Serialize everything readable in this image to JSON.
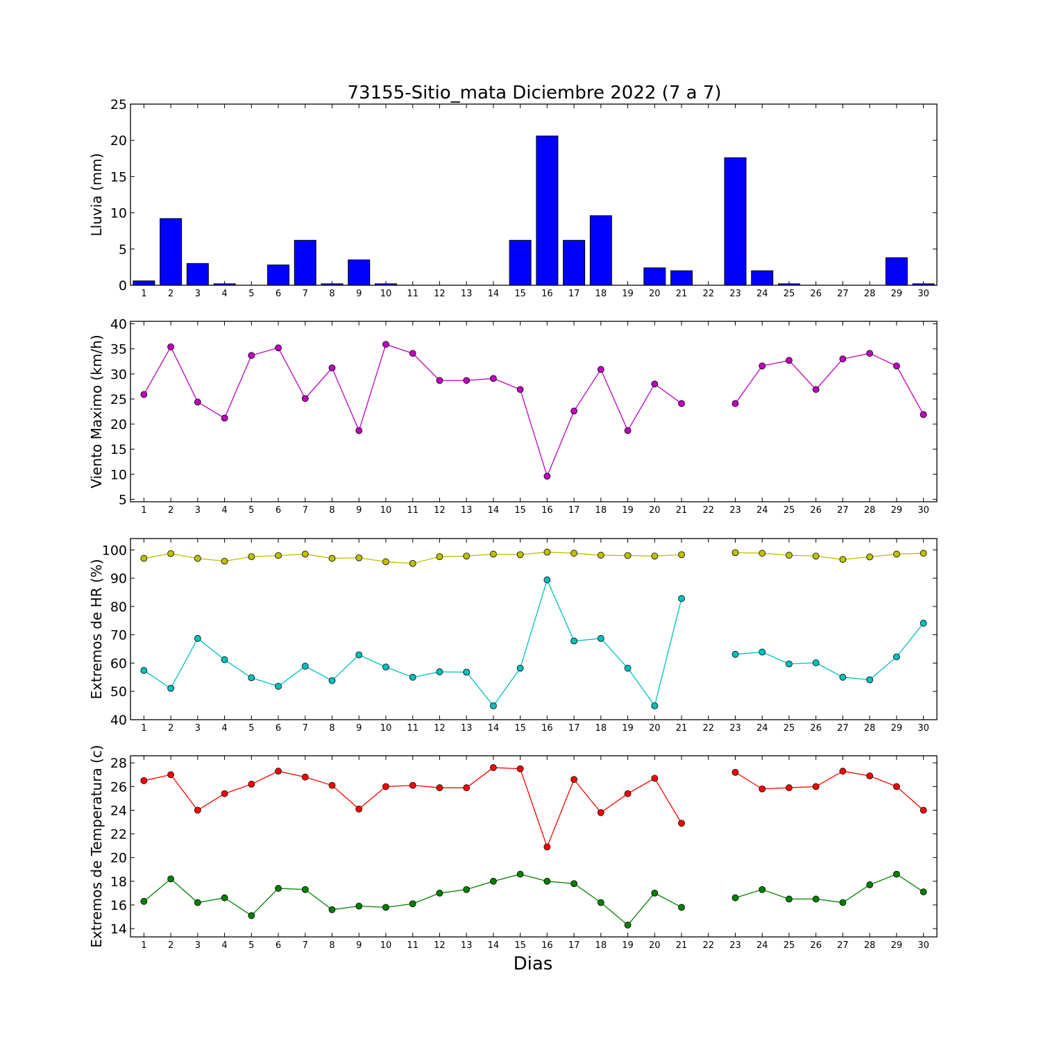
{
  "figure": {
    "title": "73155-Sitio_mata Diciembre 2022  (7 a 7)",
    "xlabel": "Dias"
  },
  "chart_data": [
    {
      "type": "bar",
      "ylabel": "Lluvia (mm)",
      "ylim": [
        0,
        25
      ],
      "yticks": [
        0,
        5,
        10,
        15,
        20,
        25
      ],
      "categories": [
        "1",
        "2",
        "3",
        "4",
        "5",
        "6",
        "7",
        "8",
        "9",
        "10",
        "11",
        "12",
        "13",
        "14",
        "15",
        "16",
        "17",
        "18",
        "19",
        "20",
        "21",
        "22",
        "23",
        "24",
        "25",
        "26",
        "27",
        "28",
        "29",
        "30"
      ],
      "series": [
        {
          "color": "#0000ff",
          "values": [
            0.6,
            9.2,
            3.0,
            0.2,
            null,
            2.8,
            6.2,
            0.2,
            3.5,
            0.2,
            0.0,
            0.0,
            0.0,
            0.0,
            6.2,
            20.6,
            6.2,
            9.6,
            0.0,
            2.4,
            2.0,
            null,
            17.6,
            2.0,
            0.2,
            0.0,
            0.0,
            0.0,
            3.8,
            0.2
          ]
        }
      ]
    },
    {
      "type": "line",
      "ylabel": "Viento Maximo (km/h)",
      "ylim": [
        4.5,
        40.5
      ],
      "yticks": [
        5,
        10,
        15,
        20,
        25,
        30,
        35,
        40
      ],
      "categories": [
        "1",
        "2",
        "3",
        "4",
        "5",
        "6",
        "7",
        "8",
        "9",
        "10",
        "11",
        "12",
        "13",
        "14",
        "15",
        "16",
        "17",
        "18",
        "19",
        "20",
        "21",
        "22",
        "23",
        "24",
        "25",
        "26",
        "27",
        "28",
        "29",
        "30"
      ],
      "series": [
        {
          "color": "#bf00bf",
          "values": [
            25.9,
            35.4,
            24.4,
            21.2,
            33.7,
            35.2,
            25.1,
            31.2,
            18.7,
            35.9,
            34.1,
            28.7,
            28.7,
            29.1,
            26.9,
            9.6,
            22.6,
            30.9,
            18.7,
            28.0,
            24.1,
            null,
            24.1,
            31.6,
            32.7,
            26.9,
            33.0,
            34.1,
            31.6,
            21.9
          ]
        }
      ]
    },
    {
      "type": "line",
      "ylabel": "Extremos de HR (%)",
      "ylim": [
        40,
        104
      ],
      "yticks": [
        40,
        50,
        60,
        70,
        80,
        90,
        100
      ],
      "categories": [
        "1",
        "2",
        "3",
        "4",
        "5",
        "6",
        "7",
        "8",
        "9",
        "10",
        "11",
        "12",
        "13",
        "14",
        "15",
        "16",
        "17",
        "18",
        "19",
        "20",
        "21",
        "22",
        "23",
        "24",
        "25",
        "26",
        "27",
        "28",
        "29",
        "30"
      ],
      "series": [
        {
          "color": "#bfbf00",
          "values": [
            97.0,
            98.7,
            97.0,
            96.0,
            97.6,
            98.0,
            98.5,
            97.0,
            97.2,
            95.8,
            95.2,
            97.6,
            97.8,
            98.5,
            98.3,
            99.2,
            98.8,
            98.1,
            98.0,
            97.8,
            98.3,
            null,
            99.0,
            98.8,
            98.1,
            97.8,
            96.6,
            97.5,
            98.5,
            98.8
          ]
        },
        {
          "color": "#00bfbf",
          "values": [
            57.4,
            51.1,
            68.7,
            61.2,
            54.8,
            51.8,
            58.9,
            53.8,
            62.9,
            58.6,
            55.0,
            56.9,
            56.8,
            44.9,
            58.2,
            89.4,
            67.8,
            68.7,
            58.2,
            44.9,
            82.8,
            null,
            63.1,
            63.9,
            59.7,
            60.1,
            55.0,
            54.1,
            62.2,
            74.1
          ]
        }
      ]
    },
    {
      "type": "line",
      "ylabel": "Extremos de Temperatura (c)",
      "ylim": [
        13.3,
        28.6
      ],
      "yticks": [
        14,
        16,
        18,
        20,
        22,
        24,
        26,
        28
      ],
      "categories": [
        "1",
        "2",
        "3",
        "4",
        "5",
        "6",
        "7",
        "8",
        "9",
        "10",
        "11",
        "12",
        "13",
        "14",
        "15",
        "16",
        "17",
        "18",
        "19",
        "20",
        "21",
        "22",
        "23",
        "24",
        "25",
        "26",
        "27",
        "28",
        "29",
        "30"
      ],
      "series": [
        {
          "color": "#ff0000",
          "values": [
            26.5,
            27.0,
            24.0,
            25.4,
            26.2,
            27.3,
            26.8,
            26.1,
            24.1,
            26.0,
            26.1,
            25.9,
            25.9,
            27.6,
            27.5,
            20.9,
            26.6,
            23.8,
            25.4,
            26.7,
            22.9,
            null,
            27.2,
            25.8,
            25.9,
            26.0,
            27.3,
            26.9,
            26.0,
            24.0
          ]
        },
        {
          "color": "#008000",
          "values": [
            16.3,
            18.2,
            16.2,
            16.6,
            15.1,
            17.4,
            17.3,
            15.6,
            15.9,
            15.8,
            16.1,
            17.0,
            17.3,
            18.0,
            18.6,
            18.0,
            17.8,
            16.2,
            14.3,
            17.0,
            15.8,
            null,
            16.6,
            17.3,
            16.5,
            16.5,
            16.2,
            17.7,
            18.6,
            17.1
          ]
        }
      ]
    }
  ]
}
